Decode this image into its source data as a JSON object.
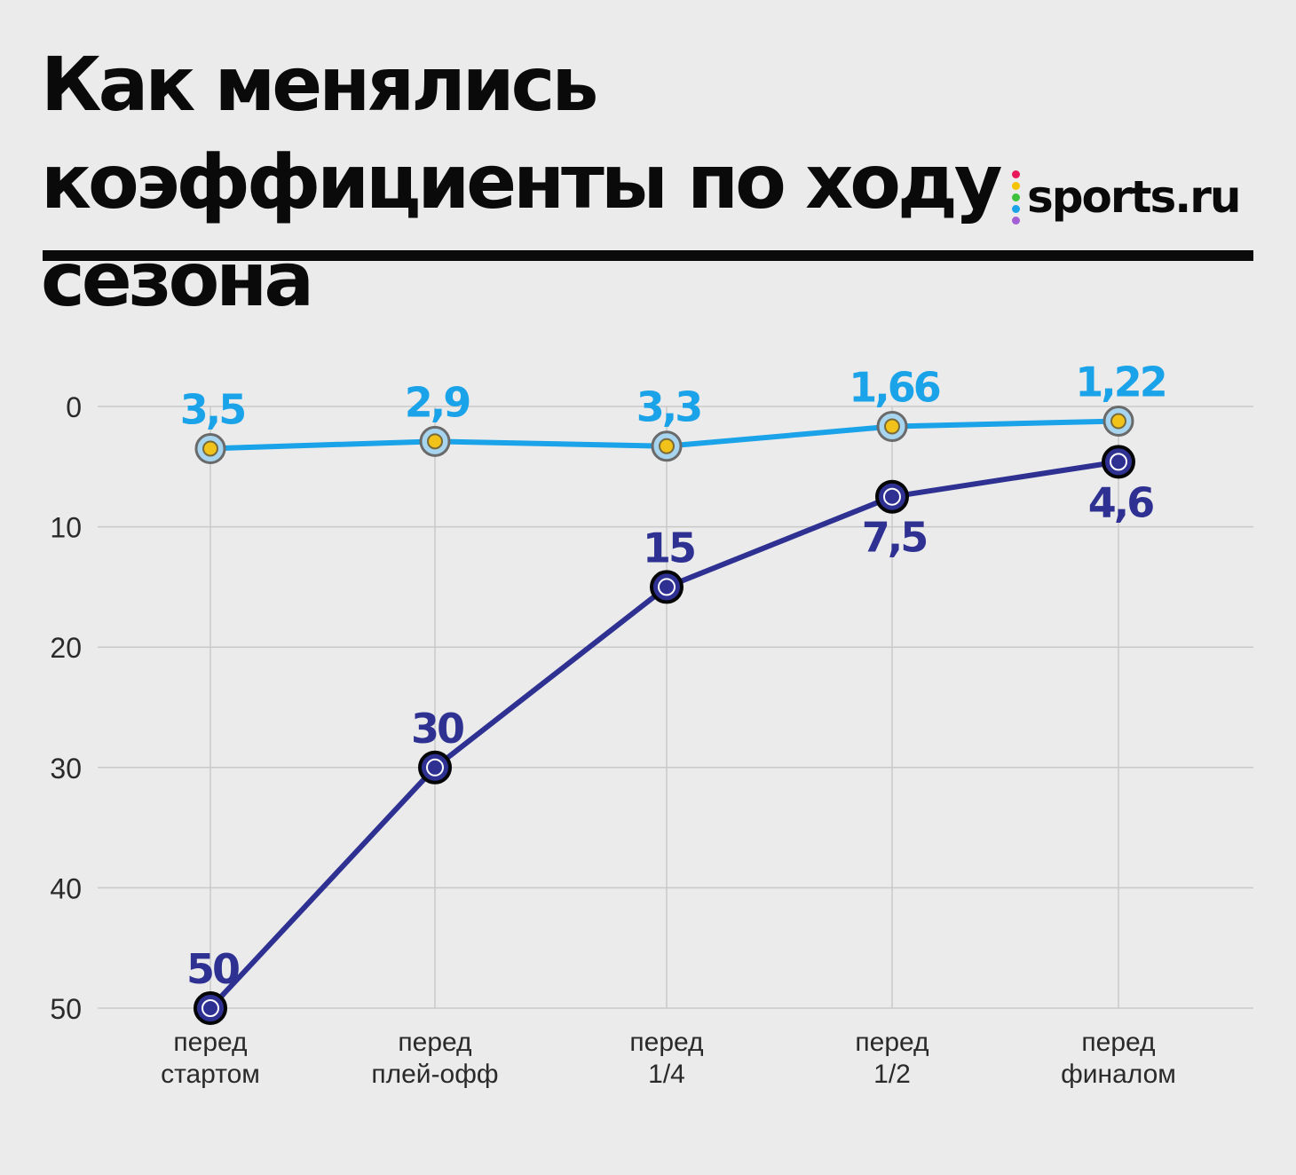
{
  "title": "Как менялись коэффициенты по ходу сезона",
  "brand": {
    "name": "sports.ru",
    "dot_colors": [
      "#e8195a",
      "#f5c400",
      "#3cc23c",
      "#1aa3e8",
      "#a35fd6"
    ]
  },
  "colors": {
    "background": "#ebebeb",
    "grid": "#c9c9c9",
    "man_city": "#1aa3e8",
    "inter": "#2e3192"
  },
  "chart_data": {
    "type": "line",
    "categories": [
      "перед\nстартом",
      "перед\nплей-офф",
      "перед\n1/4",
      "перед\n1/2",
      "перед\nфиналом"
    ],
    "y_ticks": [
      0,
      10,
      20,
      30,
      40,
      50
    ],
    "ylim": [
      0,
      50
    ],
    "y_inverted": true,
    "grid": true,
    "series": [
      {
        "icon": "man-city-crest-icon",
        "color": "#1aa3e8",
        "values": [
          3.5,
          2.9,
          3.3,
          1.66,
          1.22
        ],
        "labels": [
          "3,5",
          "2,9",
          "3,3",
          "1,66",
          "1,22"
        ],
        "label_position": "above"
      },
      {
        "icon": "inter-crest-icon",
        "color": "#2e3192",
        "values": [
          50,
          30,
          15,
          7.5,
          4.6
        ],
        "labels": [
          "50",
          "30",
          "15",
          "7,5",
          "4,6"
        ],
        "label_position": [
          "above",
          "above",
          "above",
          "below",
          "below"
        ]
      }
    ]
  }
}
